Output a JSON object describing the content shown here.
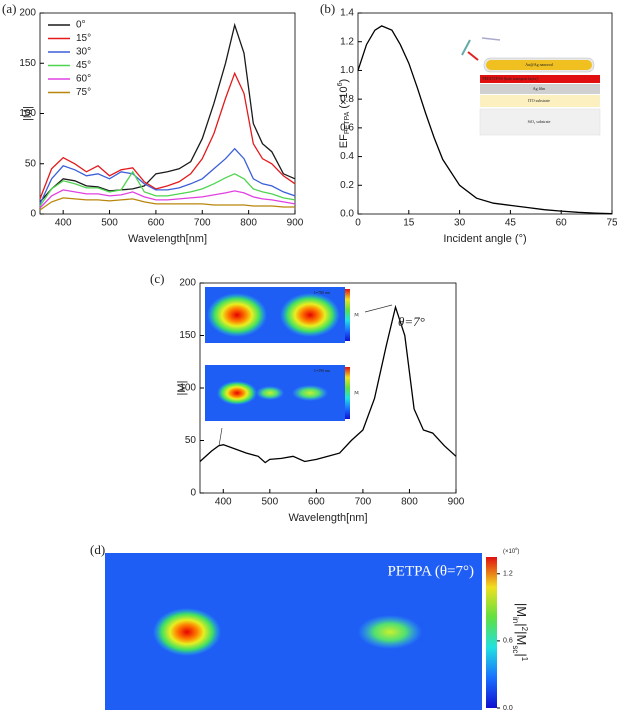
{
  "chart_data": [
    {
      "type": "line",
      "panel_label": "(a)",
      "xlabel": "Wavelength[nm]",
      "ylabel": "|M|",
      "x": [
        350,
        375,
        400,
        425,
        450,
        475,
        500,
        525,
        550,
        575,
        600,
        625,
        650,
        675,
        700,
        725,
        750,
        770,
        790,
        810,
        830,
        850,
        875,
        900
      ],
      "series": [
        {
          "name": "0°",
          "color": "#1a1a1a",
          "values": [
            12,
            25,
            35,
            33,
            28,
            27,
            23,
            24,
            25,
            28,
            40,
            42,
            45,
            52,
            75,
            110,
            150,
            188,
            160,
            90,
            70,
            62,
            40,
            35
          ]
        },
        {
          "name": "15°",
          "color": "#e41a1c",
          "values": [
            15,
            45,
            56,
            50,
            42,
            48,
            38,
            44,
            46,
            32,
            25,
            28,
            32,
            40,
            55,
            80,
            115,
            140,
            120,
            70,
            55,
            50,
            38,
            30
          ]
        },
        {
          "name": "30°",
          "color": "#3b5fd9",
          "values": [
            10,
            35,
            48,
            44,
            38,
            40,
            35,
            42,
            40,
            30,
            24,
            24,
            26,
            30,
            35,
            45,
            55,
            65,
            55,
            35,
            30,
            28,
            22,
            18
          ]
        },
        {
          "name": "45°",
          "color": "#4fd44f",
          "values": [
            8,
            25,
            33,
            30,
            26,
            26,
            22,
            24,
            42,
            22,
            18,
            18,
            20,
            22,
            25,
            30,
            36,
            40,
            35,
            25,
            22,
            20,
            16,
            14
          ]
        },
        {
          "name": "60°",
          "color": "#e040e0",
          "values": [
            6,
            18,
            24,
            22,
            20,
            20,
            18,
            19,
            22,
            17,
            14,
            14,
            15,
            16,
            17,
            19,
            21,
            23,
            21,
            17,
            15,
            14,
            12,
            10
          ]
        },
        {
          "name": "75°",
          "color": "#b8860b",
          "values": [
            4,
            12,
            16,
            15,
            14,
            14,
            13,
            14,
            15,
            12,
            10,
            10,
            10,
            10,
            10,
            9,
            9,
            9,
            9,
            8,
            8,
            8,
            7,
            7
          ]
        }
      ],
      "xlim": [
        350,
        900
      ],
      "xticks": [
        400,
        500,
        600,
        700,
        800,
        900
      ],
      "ylim": [
        0,
        200
      ],
      "yticks": [
        0,
        50,
        100,
        150,
        200
      ],
      "legend": "upper left"
    },
    {
      "type": "line",
      "panel_label": "(b)",
      "xlabel": "Incident angle (°)",
      "ylabel_parts": [
        "EF",
        "PETPA",
        " (×10",
        "6",
        ")"
      ],
      "x": [
        0,
        2.5,
        5,
        7,
        10,
        12.5,
        15,
        17.5,
        20,
        22.5,
        25,
        30,
        35,
        40,
        45,
        50,
        55,
        60,
        65,
        70,
        75
      ],
      "values": [
        1.0,
        1.18,
        1.28,
        1.31,
        1.28,
        1.18,
        1.05,
        0.88,
        0.7,
        0.53,
        0.38,
        0.2,
        0.11,
        0.075,
        0.06,
        0.045,
        0.03,
        0.02,
        0.012,
        0.006,
        0.002
      ],
      "color": "#000000",
      "xlim": [
        0,
        75
      ],
      "xticks": [
        0,
        15,
        30,
        45,
        60,
        75
      ],
      "ylim": [
        0,
        1.4
      ],
      "yticks": [
        {
          "value": 0,
          "label": "0.0"
        },
        0.2,
        0.4,
        0.6,
        0.8,
        {
          "value": 1,
          "label": "1.0"
        },
        1.2,
        1.4
      ],
      "inset_labels": [
        "Au@Ag nanorod",
        "PEDOT:PSS (hole transport layer)",
        "Ag film",
        "ITO substrate",
        "SiO₂ substrate"
      ]
    },
    {
      "type": "line",
      "panel_label": "(c)",
      "xlabel": "Wavelength[nm]",
      "ylabel": "|M|",
      "annotation": "θ=7°",
      "x": [
        350,
        375,
        390,
        400,
        425,
        450,
        475,
        490,
        500,
        525,
        550,
        575,
        600,
        625,
        650,
        675,
        700,
        725,
        750,
        770,
        790,
        810,
        830,
        850,
        875,
        900
      ],
      "values": [
        30,
        40,
        45,
        46,
        42,
        38,
        35,
        29,
        32,
        33,
        35,
        30,
        32,
        35,
        38,
        50,
        60,
        90,
        140,
        177,
        150,
        80,
        60,
        57,
        45,
        35
      ],
      "color": "#000000",
      "xlim": [
        350,
        900
      ],
      "xticks": [
        400,
        500,
        600,
        700,
        800,
        900
      ],
      "ylim": [
        0,
        200
      ],
      "yticks": [
        0,
        50,
        100,
        150,
        200
      ],
      "insets": [
        "λ=780 nm",
        "λ=390 nm"
      ],
      "inset_colorbar_label": "|M|"
    },
    {
      "type": "heatmap",
      "panel_label": "(d)",
      "annotation": "PETPA (θ=7°)",
      "colorbar": {
        "unit_parts": [
          "(×10",
          "6",
          ")"
        ],
        "label_parts": [
          "|M",
          "in",
          "|",
          "2",
          "|M",
          "sc",
          "|",
          "1"
        ],
        "lim": [
          0,
          1.35
        ],
        "ticks": [
          {
            "value": 0,
            "label": "0.0"
          },
          0.6,
          1.2
        ]
      }
    }
  ]
}
